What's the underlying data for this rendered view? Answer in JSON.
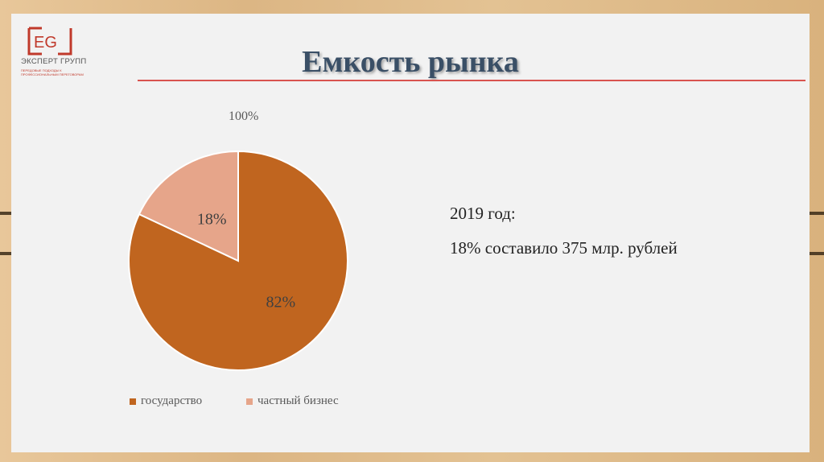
{
  "slide": {
    "title": "Емкость рынка",
    "logo": {
      "mark": "EG",
      "name": "ЭКСПЕРТ ГРУПП",
      "tagline_1": "ПЕРЕДОВЫЕ ПОДХОДЫ К",
      "tagline_2": "ПРОФЕССИОНАЛЬНЫМ ПЕРЕГОВОРАМ",
      "color": "#c0392b"
    },
    "notes": [
      "2019 год:",
      "18% составило 375 млр. рублей"
    ]
  },
  "chart_data": {
    "type": "pie",
    "title": "100%",
    "categories": [
      "государство",
      "частный бизнес"
    ],
    "values": [
      82,
      18
    ],
    "labels": [
      "82%",
      "18%"
    ],
    "colors": [
      "#c0651f",
      "#e6a58a"
    ],
    "legend": "bottom"
  }
}
